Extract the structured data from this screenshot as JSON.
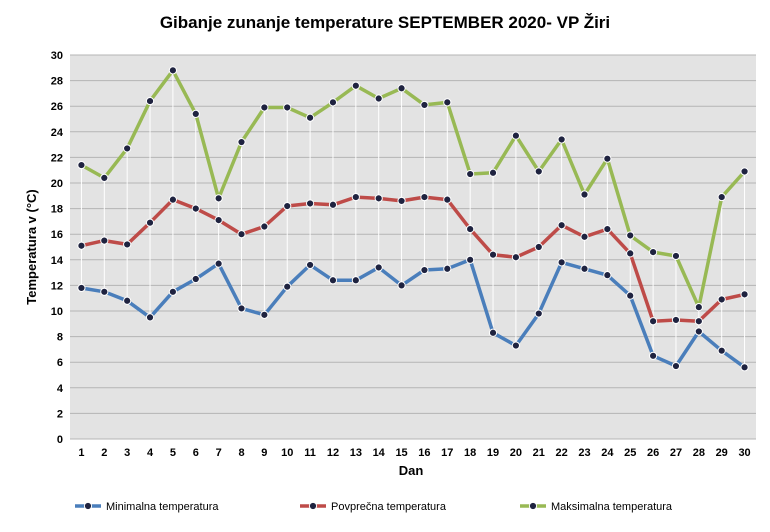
{
  "chart_data": {
    "type": "line",
    "title": "Gibanje zunanje temperature SEPTEMBER 2020- VP Žiri",
    "xlabel": "Dan",
    "ylabel": "Temperatura v (°C)",
    "ylim": [
      0,
      30
    ],
    "ytick_step": 2,
    "grid": true,
    "legend_position": "bottom",
    "categories": [
      "1",
      "2",
      "3",
      "4",
      "5",
      "6",
      "7",
      "8",
      "9",
      "10",
      "11",
      "12",
      "13",
      "14",
      "15",
      "16",
      "17",
      "18",
      "19",
      "20",
      "21",
      "22",
      "23",
      "24",
      "25",
      "26",
      "27",
      "28",
      "29",
      "30"
    ],
    "series": [
      {
        "name": "Minimalna temperatura",
        "color": "#4a7ebb",
        "values": [
          11.8,
          11.5,
          10.8,
          9.5,
          11.5,
          12.5,
          13.7,
          10.2,
          9.7,
          11.9,
          13.6,
          12.4,
          12.4,
          13.4,
          12.0,
          13.2,
          13.3,
          14.0,
          8.3,
          7.3,
          9.8,
          13.8,
          13.3,
          12.8,
          11.2,
          6.5,
          5.7,
          8.4,
          6.9,
          5.6
        ]
      },
      {
        "name": "Povprečna temperatura",
        "color": "#be4b48",
        "values": [
          15.1,
          15.5,
          15.2,
          16.9,
          18.7,
          18.0,
          17.1,
          16.0,
          16.6,
          18.2,
          18.4,
          18.3,
          18.9,
          18.8,
          18.6,
          18.9,
          18.7,
          16.4,
          14.4,
          14.2,
          15.0,
          16.7,
          15.8,
          16.4,
          14.5,
          9.2,
          9.3,
          9.2,
          10.9,
          11.3
        ]
      },
      {
        "name": "Maksimalna temperatura",
        "color": "#98b954",
        "values": [
          21.4,
          20.4,
          22.7,
          26.4,
          28.8,
          25.4,
          18.8,
          23.2,
          25.9,
          25.9,
          25.1,
          26.3,
          27.6,
          26.6,
          27.4,
          26.1,
          26.3,
          20.7,
          20.8,
          23.7,
          20.9,
          23.4,
          19.1,
          21.9,
          15.9,
          14.6,
          14.3,
          10.3,
          18.9,
          20.9
        ]
      }
    ]
  }
}
